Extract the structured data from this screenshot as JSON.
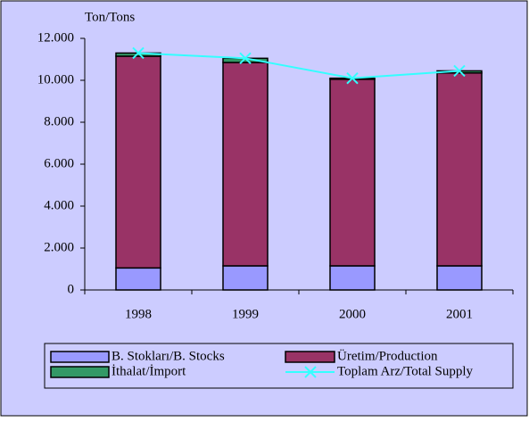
{
  "chart_data": {
    "type": "bar",
    "stacked": true,
    "y_label": "Ton/Tons",
    "categories": [
      "1998",
      "1999",
      "2000",
      "2001"
    ],
    "series": [
      {
        "name": "B. Stokları/B. Stocks",
        "color": "#9999ff",
        "values": [
          1050,
          1150,
          1150,
          1150
        ]
      },
      {
        "name": "Üretim/Production",
        "color": "#993366",
        "values": [
          10100,
          9700,
          8900,
          9200
        ]
      },
      {
        "name": "İthalat/İmport",
        "color": "#339966",
        "values": [
          150,
          200,
          50,
          100
        ]
      },
      {
        "name": "Toplam Arz/Total Supply",
        "type": "line",
        "color": "#33ffff",
        "values": [
          11300,
          11050,
          10100,
          10450
        ]
      }
    ],
    "ylim": [
      0,
      12000
    ],
    "yticks": [
      0,
      {
        "value": 2000,
        "label": "2.000"
      },
      {
        "value": 4000,
        "label": "4.000"
      },
      {
        "value": 6000,
        "label": "6.000"
      },
      {
        "value": 8000,
        "label": "8.000"
      },
      {
        "value": 10000,
        "label": "10.000"
      },
      {
        "value": 12000,
        "label": "12.000"
      }
    ]
  }
}
